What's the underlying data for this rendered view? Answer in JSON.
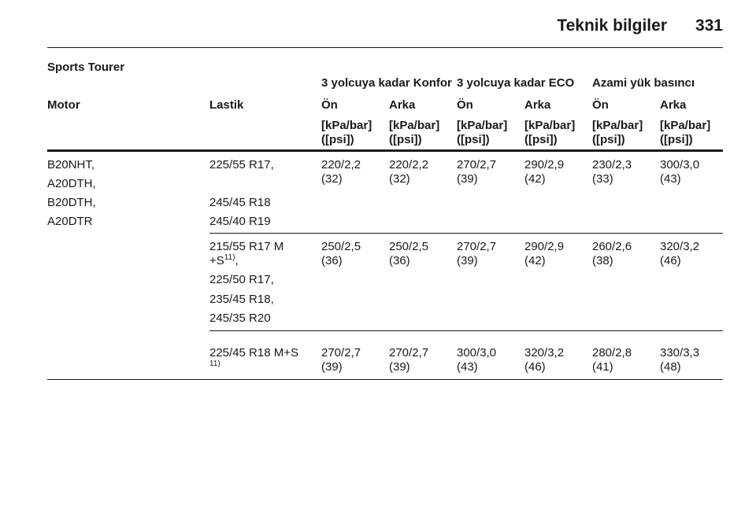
{
  "header": {
    "title": "Teknik bilgiler",
    "page_number": "331"
  },
  "section_title": "Sports Tourer",
  "table": {
    "group_headers": [
      "3 yolcuya kadar Konfor",
      "3 yolcuya kadar ECO",
      "Azami yük basıncı"
    ],
    "columns": [
      "Motor",
      "Lastik",
      "Ön",
      "Arka",
      "Ön",
      "Arka",
      "Ön",
      "Arka"
    ],
    "units": [
      {
        "kpa": "[kPa/bar]",
        "psi": "([psi])"
      },
      {
        "kpa": "[kPa/bar]",
        "psi": "([psi])"
      },
      {
        "kpa": "[kPa/bar]",
        "psi": "([psi])"
      },
      {
        "kpa": "[kPa/bar]",
        "psi": "([psi])"
      },
      {
        "kpa": "[kPa/bar]",
        "psi": "([psi])"
      },
      {
        "kpa": "[kPa/bar]",
        "psi": "([psi])"
      }
    ],
    "motor": [
      "B20NHT,",
      "A20DTH,",
      "B20DTH,",
      "A20DTR"
    ],
    "groups": [
      {
        "tires": [
          {
            "text": "225/55 R17,"
          },
          {
            "text": "245/45 R18"
          },
          {
            "text": "245/40 R19"
          }
        ],
        "values": [
          {
            "bar": "220/2,2",
            "psi": "(32)"
          },
          {
            "bar": "220/2,2",
            "psi": "(32)"
          },
          {
            "bar": "270/2,7",
            "psi": "(39)"
          },
          {
            "bar": "290/2,9",
            "psi": "(42)"
          },
          {
            "bar": "230/2,3",
            "psi": "(33)"
          },
          {
            "bar": "300/3,0",
            "psi": "(43)"
          }
        ]
      },
      {
        "tires": [
          {
            "text": "215/55 R17 M +S",
            "note": "11)",
            "suffix": ","
          },
          {
            "text": "225/50 R17,"
          },
          {
            "text": "235/45 R18,"
          },
          {
            "text": "245/35 R20"
          }
        ],
        "values": [
          {
            "bar": "250/2,5",
            "psi": "(36)"
          },
          {
            "bar": "250/2,5",
            "psi": "(36)"
          },
          {
            "bar": "270/2,7",
            "psi": "(39)"
          },
          {
            "bar": "290/2,9",
            "psi": "(42)"
          },
          {
            "bar": "260/2,6",
            "psi": "(38)"
          },
          {
            "bar": "320/3,2",
            "psi": "(46)"
          }
        ]
      },
      {
        "tires": [
          {
            "text": "225/45 R18 M+S",
            "note": "11)"
          }
        ],
        "values": [
          {
            "bar": "270/2,7",
            "psi": "(39)"
          },
          {
            "bar": "270/2,7",
            "psi": "(39)"
          },
          {
            "bar": "300/3,0",
            "psi": "(43)"
          },
          {
            "bar": "320/3,2",
            "psi": "(46)"
          },
          {
            "bar": "280/2,8",
            "psi": "(41)"
          },
          {
            "bar": "330/3,3",
            "psi": "(48)"
          }
        ]
      }
    ]
  }
}
